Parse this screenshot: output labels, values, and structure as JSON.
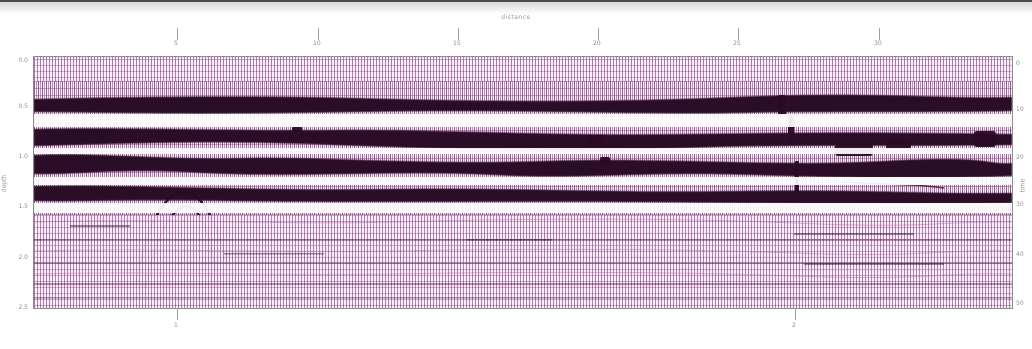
{
  "header": {
    "title": "distance"
  },
  "axes": {
    "left_caption": "depth",
    "right_caption": "time",
    "left_ticks": [
      "0.0",
      "0.5",
      "1.0",
      "1.5",
      "2.0",
      "2.5"
    ],
    "right_ticks": [
      "0",
      "10",
      "20",
      "30",
      "40",
      "50"
    ],
    "top_ticks": [
      "5",
      "10",
      "15",
      "20",
      "25",
      "30"
    ],
    "bottom_ticks": [
      "1",
      "2"
    ]
  },
  "colors": {
    "reflection": "#2a0a25",
    "noise": "#8b3a86",
    "background": "#f6eef7",
    "frame": "#8c8c8c"
  }
}
